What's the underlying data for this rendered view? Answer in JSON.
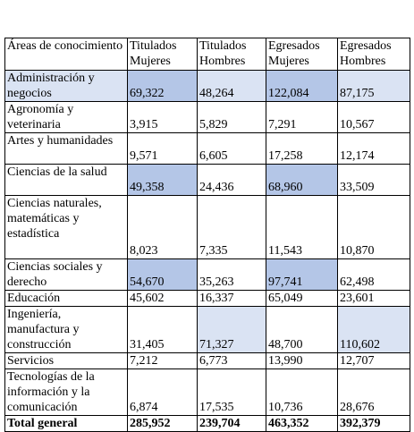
{
  "table": {
    "header": [
      "Áreas de conocimiento",
      "Titulados Mujeres",
      "Titulados Hombres",
      "Egresados Mujeres",
      "Egresados Hombres"
    ],
    "rows": [
      [
        "Administración y negocios",
        "69,322",
        "48,264",
        "122,084",
        "87,175"
      ],
      [
        "Agronomía y veterinaria",
        "3,915",
        "5,829",
        "7,291",
        "10,567"
      ],
      [
        "Artes y humanidades",
        "9,571",
        "6,605",
        "17,258",
        "12,174"
      ],
      [
        "Ciencias de la salud",
        "49,358",
        "24,436",
        "68,960",
        "33,509"
      ],
      [
        "Ciencias naturales, matemáticas y estadística",
        "8,023",
        "7,335",
        "11,543",
        "10,870"
      ],
      [
        "Ciencias sociales y derecho",
        "54,670",
        "35,263",
        "97,741",
        "62,498"
      ],
      [
        "Educación",
        "45,602",
        "16,337",
        "65,049",
        "23,601"
      ],
      [
        "Ingeniería, manufactura y construcción",
        "31,405",
        "71,327",
        "48,700",
        "110,602"
      ],
      [
        "Servicios",
        "7,212",
        "6,773",
        "13,990",
        "12,707"
      ],
      [
        "Tecnologías de la información y la comunicación",
        "6,874",
        "17,535",
        "10,736",
        "28,676"
      ]
    ],
    "total": [
      "Total general",
      "285,952",
      "239,704",
      "463,352",
      "392,379"
    ]
  }
}
